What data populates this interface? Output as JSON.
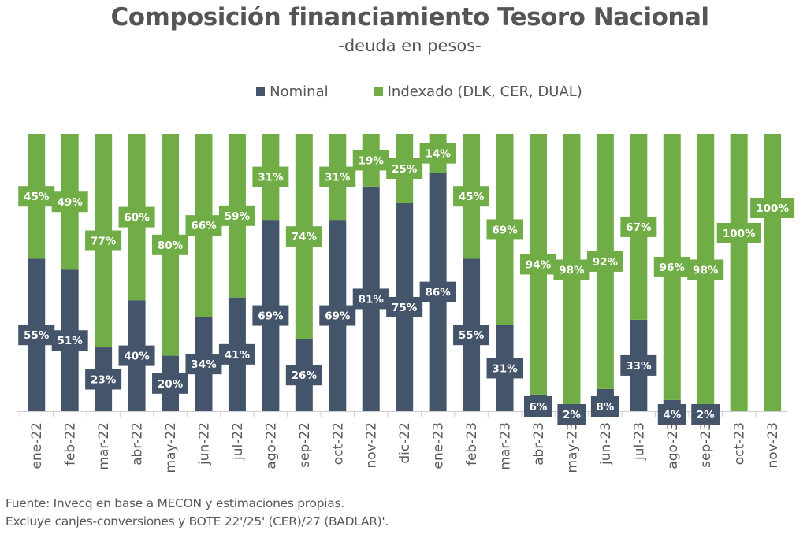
{
  "header": {
    "title": "Composición financiamiento Tesoro Nacional",
    "subtitle": "-deuda en pesos-"
  },
  "legend": [
    {
      "label": "Nominal",
      "color": "#44546A"
    },
    {
      "label": "Indexado (DLK, CER, DUAL)",
      "color": "#70AD47"
    }
  ],
  "footnotes": [
    "Fuente: Invecq en base a MECON y estimaciones propias.",
    "Excluye canjes-conversiones y BOTE 22'/25' (CER)/27 (BADLAR)'."
  ],
  "chart_data": {
    "type": "bar",
    "stacked": true,
    "percent": true,
    "title": "Composición financiamiento Tesoro Nacional",
    "subtitle": "-deuda en pesos-",
    "xlabel": "",
    "ylabel": "",
    "ylim": [
      0,
      100
    ],
    "grid": false,
    "legend_position": "top",
    "categories": [
      "ene-22",
      "feb-22",
      "mar-22",
      "abr-22",
      "may-22",
      "jun-22",
      "jul-22",
      "ago-22",
      "sep-22",
      "oct-22",
      "nov-22",
      "dic-22",
      "ene-23",
      "feb-23",
      "mar-23",
      "abr-23",
      "may-23",
      "jun-23",
      "jul-23",
      "ago-23",
      "sep-23",
      "oct-23",
      "nov-23"
    ],
    "series": [
      {
        "name": "Nominal",
        "color": "#44546A",
        "values": [
          55,
          51,
          23,
          40,
          20,
          34,
          41,
          69,
          26,
          69,
          81,
          75,
          86,
          55,
          31,
          6,
          2,
          8,
          33,
          4,
          2,
          0,
          0
        ]
      },
      {
        "name": "Indexado (DLK, CER, DUAL)",
        "color": "#70AD47",
        "values": [
          45,
          49,
          77,
          60,
          80,
          66,
          59,
          31,
          74,
          31,
          19,
          25,
          14,
          45,
          69,
          94,
          98,
          92,
          67,
          96,
          98,
          100,
          100
        ]
      }
    ],
    "data_labels": "percent"
  }
}
